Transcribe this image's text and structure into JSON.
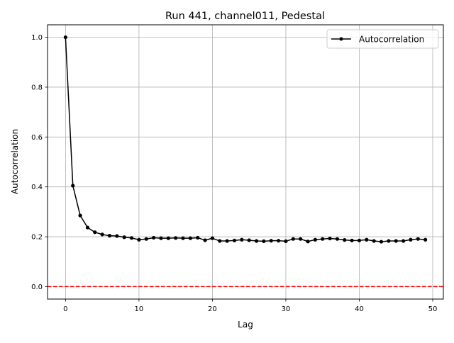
{
  "chart_data": {
    "type": "line",
    "title": "Run 441, channel011, Pedestal",
    "xlabel": "Lag",
    "ylabel": "Autocorrelation",
    "xlim": [
      -2.45,
      51.45
    ],
    "ylim": [
      -0.05,
      1.05
    ],
    "grid": true,
    "legend_placement": "upper right",
    "xticks": [
      0,
      10,
      20,
      30,
      40,
      50
    ],
    "xtick_labels": [
      "0",
      "10",
      "20",
      "30",
      "40",
      "50"
    ],
    "yticks": [
      0.0,
      0.2,
      0.4,
      0.6,
      0.8,
      1.0
    ],
    "ytick_labels": [
      "0.0",
      "0.2",
      "0.4",
      "0.6",
      "0.8",
      "1.0"
    ],
    "series": [
      {
        "name": "Autocorrelation",
        "color": "#000000",
        "marker": "dot",
        "x": [
          0,
          1,
          2,
          3,
          4,
          5,
          6,
          7,
          8,
          9,
          10,
          11,
          12,
          13,
          14,
          15,
          16,
          17,
          18,
          19,
          20,
          21,
          22,
          23,
          24,
          25,
          26,
          27,
          28,
          29,
          30,
          31,
          32,
          33,
          34,
          35,
          36,
          37,
          38,
          39,
          40,
          41,
          42,
          43,
          44,
          45,
          46,
          47,
          48,
          49
        ],
        "values": [
          1.0,
          0.405,
          0.285,
          0.237,
          0.218,
          0.209,
          0.204,
          0.203,
          0.198,
          0.195,
          0.188,
          0.191,
          0.196,
          0.194,
          0.194,
          0.195,
          0.194,
          0.194,
          0.196,
          0.186,
          0.194,
          0.183,
          0.183,
          0.185,
          0.188,
          0.186,
          0.183,
          0.182,
          0.184,
          0.184,
          0.182,
          0.191,
          0.191,
          0.181,
          0.188,
          0.191,
          0.193,
          0.191,
          0.187,
          0.185,
          0.185,
          0.188,
          0.183,
          0.18,
          0.183,
          0.183,
          0.183,
          0.188,
          0.191,
          0.188
        ]
      }
    ],
    "reference_line": {
      "y": 0.0,
      "color": "#ff0000",
      "style": "dashed"
    }
  }
}
